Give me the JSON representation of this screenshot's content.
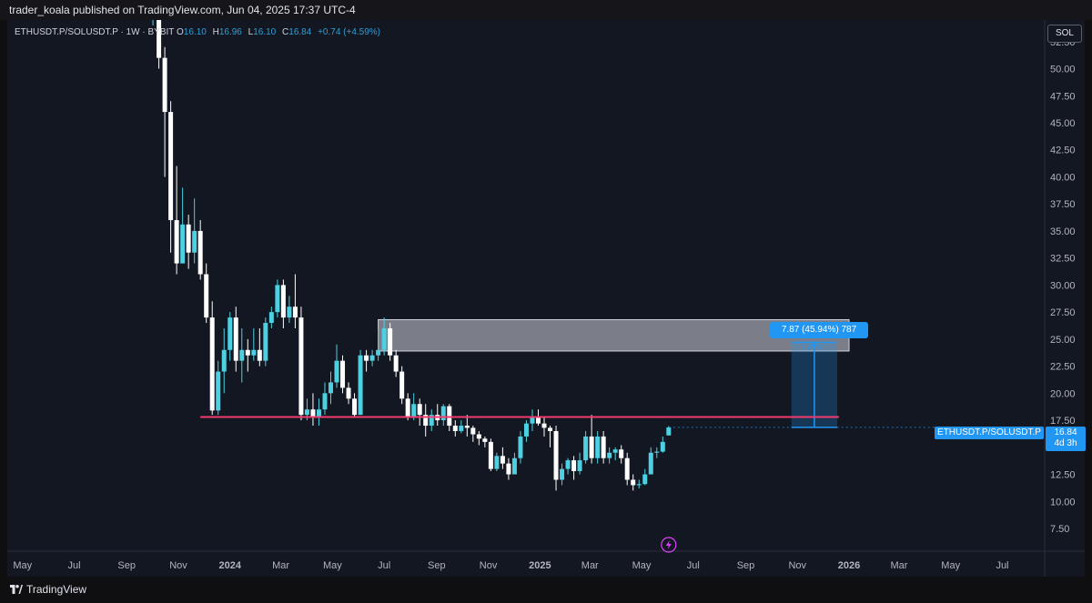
{
  "header": {
    "publisher": "trader_koala published on TradingView.com, Jun 04, 2025 17:37 UTC-4"
  },
  "legend": {
    "symbol": "ETHUSDT.P/SOLUSDT.P · 1W · BYBIT",
    "o_label": "O",
    "o_value": "16.10",
    "h_label": "H",
    "h_value": "16.96",
    "l_label": "L",
    "l_value": "16.10",
    "c_label": "C",
    "c_value": "16.84",
    "change": "+0.74 (+4.59%)"
  },
  "scale_button": "SOL",
  "price_tag": {
    "price": "16.84",
    "countdown": "4d 3h"
  },
  "symbol_tag": "ETHUSDT.P/SOLUSDT.P",
  "measure_label": "7.87 (45.94%) 787",
  "footer": {
    "brand": "TradingView"
  },
  "colors": {
    "up": "#4dd0e1",
    "down": "#ffffff",
    "support_line": "#f23b6e",
    "measure": "#2196f3",
    "zone": "#d1d4dc"
  },
  "chart_data": {
    "type": "candlestick",
    "symbol": "ETHUSDT.P/SOLUSDT.P",
    "interval": "1W",
    "y_ticks": [
      7.5,
      10,
      12.5,
      15,
      17.5,
      20,
      22.5,
      25,
      27.5,
      30,
      32.5,
      35,
      37.5,
      40,
      42.5,
      45,
      47.5,
      50,
      52.5
    ],
    "y_tick_labels": [
      "7.50",
      "10.00",
      "12.50",
      "15.00",
      "17.50",
      "20.00",
      "22.50",
      "25.00",
      "27.50",
      "30.00",
      "32.50",
      "35.00",
      "37.50",
      "40.00",
      "42.50",
      "45.00",
      "47.50",
      "50.00",
      "52.50"
    ],
    "ylim": [
      5.4,
      54.5
    ],
    "x_ticks": [
      "May",
      "Jul",
      "Sep",
      "Nov",
      "2024",
      "Mar",
      "May",
      "Jul",
      "Sep",
      "Nov",
      "2025",
      "Mar",
      "May",
      "Jul",
      "Sep",
      "Nov",
      "2026",
      "Mar",
      "May",
      "Jul"
    ],
    "x_tick_dates": [
      "2023-05-01",
      "2023-07-01",
      "2023-09-01",
      "2023-11-01",
      "2024-01-01",
      "2024-03-01",
      "2024-05-01",
      "2024-07-01",
      "2024-09-01",
      "2024-11-01",
      "2025-01-01",
      "2025-03-01",
      "2025-05-01",
      "2025-07-01",
      "2025-09-01",
      "2025-11-01",
      "2026-01-01",
      "2026-03-01",
      "2026-05-01",
      "2026-07-01"
    ],
    "xlim": [
      "2023-04-13",
      "2026-08-20"
    ],
    "candles": [
      {
        "date": "2023-10-02",
        "o": 55.0,
        "h": 59.0,
        "c": 57.0,
        "l": 54.0
      },
      {
        "date": "2023-10-09",
        "o": 57.0,
        "h": 58.0,
        "c": 51.0,
        "l": 50.0
      },
      {
        "date": "2023-10-16",
        "o": 51.0,
        "h": 52.0,
        "c": 46.0,
        "l": 40.0
      },
      {
        "date": "2023-10-23",
        "o": 46.0,
        "h": 47.0,
        "c": 36.0,
        "l": 33.0
      },
      {
        "date": "2023-10-30",
        "o": 36.0,
        "h": 41.0,
        "c": 32.0,
        "l": 31.0
      },
      {
        "date": "2023-11-06",
        "o": 32.0,
        "h": 39.0,
        "c": 35.6,
        "l": 32.0
      },
      {
        "date": "2023-11-13",
        "o": 35.6,
        "h": 36.5,
        "c": 33.0,
        "l": 31.5
      },
      {
        "date": "2023-11-20",
        "o": 33.0,
        "h": 38.0,
        "c": 35.0,
        "l": 32.0
      },
      {
        "date": "2023-11-27",
        "o": 35.0,
        "h": 36.0,
        "c": 31.0,
        "l": 30.5
      },
      {
        "date": "2023-12-04",
        "o": 31.0,
        "h": 32.0,
        "c": 27.0,
        "l": 26.5
      },
      {
        "date": "2023-12-11",
        "o": 27.0,
        "h": 28.5,
        "c": 18.4,
        "l": 18.0
      },
      {
        "date": "2023-12-18",
        "o": 18.4,
        "h": 23.0,
        "c": 22.0,
        "l": 18.0
      },
      {
        "date": "2023-12-25",
        "o": 22.0,
        "h": 26.0,
        "c": 24.0,
        "l": 20.0
      },
      {
        "date": "2024-01-01",
        "o": 24.0,
        "h": 27.5,
        "c": 27.0,
        "l": 23.0
      },
      {
        "date": "2024-01-08",
        "o": 27.0,
        "h": 28.0,
        "c": 23.0,
        "l": 22.0
      },
      {
        "date": "2024-01-15",
        "o": 23.0,
        "h": 26.0,
        "c": 24.0,
        "l": 21.0
      },
      {
        "date": "2024-01-22",
        "o": 24.0,
        "h": 25.0,
        "c": 23.5,
        "l": 22.0
      },
      {
        "date": "2024-01-29",
        "o": 23.5,
        "h": 26.0,
        "c": 24.0,
        "l": 23.0
      },
      {
        "date": "2024-02-05",
        "o": 24.0,
        "h": 26.0,
        "c": 23.0,
        "l": 22.5
      },
      {
        "date": "2024-02-12",
        "o": 23.0,
        "h": 27.0,
        "c": 26.5,
        "l": 22.5
      },
      {
        "date": "2024-02-19",
        "o": 26.5,
        "h": 28.0,
        "c": 27.5,
        "l": 26.0
      },
      {
        "date": "2024-02-26",
        "o": 27.5,
        "h": 30.5,
        "c": 30.0,
        "l": 27.0
      },
      {
        "date": "2024-03-04",
        "o": 30.0,
        "h": 30.5,
        "c": 27.0,
        "l": 26.0
      },
      {
        "date": "2024-03-11",
        "o": 27.0,
        "h": 29.0,
        "c": 28.0,
        "l": 26.5
      },
      {
        "date": "2024-03-18",
        "o": 28.0,
        "h": 31.0,
        "c": 27.0,
        "l": 26.0
      },
      {
        "date": "2024-03-25",
        "o": 27.0,
        "h": 28.0,
        "c": 18.0,
        "l": 17.5
      },
      {
        "date": "2024-04-01",
        "o": 18.0,
        "h": 19.5,
        "c": 18.5,
        "l": 17.5
      },
      {
        "date": "2024-04-08",
        "o": 18.5,
        "h": 20.0,
        "c": 17.8,
        "l": 17.0
      },
      {
        "date": "2024-04-15",
        "o": 17.8,
        "h": 19.5,
        "c": 18.5,
        "l": 17.0
      },
      {
        "date": "2024-04-22",
        "o": 18.5,
        "h": 21.0,
        "c": 20.0,
        "l": 18.0
      },
      {
        "date": "2024-04-29",
        "o": 20.0,
        "h": 22.0,
        "c": 21.0,
        "l": 19.0
      },
      {
        "date": "2024-05-06",
        "o": 21.0,
        "h": 24.5,
        "c": 23.0,
        "l": 20.5
      },
      {
        "date": "2024-05-13",
        "o": 23.0,
        "h": 23.5,
        "c": 20.5,
        "l": 20.0
      },
      {
        "date": "2024-05-20",
        "o": 20.5,
        "h": 21.0,
        "c": 19.5,
        "l": 19.0
      },
      {
        "date": "2024-05-27",
        "o": 19.5,
        "h": 20.0,
        "c": 18.0,
        "l": 17.8
      },
      {
        "date": "2024-06-03",
        "o": 18.0,
        "h": 24.0,
        "c": 23.5,
        "l": 18.0
      },
      {
        "date": "2024-06-10",
        "o": 23.5,
        "h": 24.0,
        "c": 23.0,
        "l": 22.0
      },
      {
        "date": "2024-06-17",
        "o": 23.0,
        "h": 24.0,
        "c": 23.5,
        "l": 22.5
      },
      {
        "date": "2024-06-24",
        "o": 23.5,
        "h": 26.0,
        "c": 24.0,
        "l": 23.0
      },
      {
        "date": "2024-07-01",
        "o": 24.0,
        "h": 27.0,
        "c": 26.0,
        "l": 23.5
      },
      {
        "date": "2024-07-08",
        "o": 26.0,
        "h": 26.5,
        "c": 23.5,
        "l": 23.0
      },
      {
        "date": "2024-07-15",
        "o": 23.5,
        "h": 24.0,
        "c": 22.0,
        "l": 21.5
      },
      {
        "date": "2024-07-22",
        "o": 22.0,
        "h": 22.5,
        "c": 19.5,
        "l": 19.0
      },
      {
        "date": "2024-07-29",
        "o": 19.5,
        "h": 20.0,
        "c": 17.8,
        "l": 17.5
      },
      {
        "date": "2024-08-05",
        "o": 17.8,
        "h": 20.0,
        "c": 19.0,
        "l": 17.5
      },
      {
        "date": "2024-08-12",
        "o": 19.0,
        "h": 19.5,
        "c": 18.0,
        "l": 17.0
      },
      {
        "date": "2024-08-19",
        "o": 18.0,
        "h": 19.0,
        "c": 17.0,
        "l": 16.0
      },
      {
        "date": "2024-08-26",
        "o": 17.0,
        "h": 18.5,
        "c": 18.0,
        "l": 16.5
      },
      {
        "date": "2024-09-02",
        "o": 18.0,
        "h": 19.0,
        "c": 17.5,
        "l": 17.0
      },
      {
        "date": "2024-09-09",
        "o": 17.5,
        "h": 19.0,
        "c": 18.8,
        "l": 17.0
      },
      {
        "date": "2024-09-16",
        "o": 18.8,
        "h": 19.0,
        "c": 17.0,
        "l": 16.5
      },
      {
        "date": "2024-09-23",
        "o": 17.0,
        "h": 17.5,
        "c": 16.5,
        "l": 16.0
      },
      {
        "date": "2024-09-30",
        "o": 16.5,
        "h": 17.5,
        "c": 17.0,
        "l": 16.3
      },
      {
        "date": "2024-10-07",
        "o": 17.0,
        "h": 18.0,
        "c": 16.8,
        "l": 16.0
      },
      {
        "date": "2024-10-14",
        "o": 16.8,
        "h": 17.0,
        "c": 16.2,
        "l": 15.5
      },
      {
        "date": "2024-10-21",
        "o": 16.2,
        "h": 16.5,
        "c": 15.8,
        "l": 15.2
      },
      {
        "date": "2024-10-28",
        "o": 15.8,
        "h": 16.0,
        "c": 15.5,
        "l": 15.0
      },
      {
        "date": "2024-11-04",
        "o": 15.5,
        "h": 15.8,
        "c": 13.0,
        "l": 12.8
      },
      {
        "date": "2024-11-11",
        "o": 13.0,
        "h": 14.5,
        "c": 14.2,
        "l": 12.8
      },
      {
        "date": "2024-11-18",
        "o": 14.2,
        "h": 15.0,
        "c": 13.5,
        "l": 13.0
      },
      {
        "date": "2024-11-25",
        "o": 13.5,
        "h": 14.0,
        "c": 12.5,
        "l": 12.0
      },
      {
        "date": "2024-12-02",
        "o": 12.5,
        "h": 14.5,
        "c": 14.0,
        "l": 12.5
      },
      {
        "date": "2024-12-09",
        "o": 14.0,
        "h": 16.5,
        "c": 16.0,
        "l": 13.5
      },
      {
        "date": "2024-12-16",
        "o": 16.0,
        "h": 17.5,
        "c": 17.2,
        "l": 15.5
      },
      {
        "date": "2024-12-23",
        "o": 17.2,
        "h": 18.5,
        "c": 17.8,
        "l": 16.5
      },
      {
        "date": "2024-12-30",
        "o": 17.8,
        "h": 18.5,
        "c": 17.2,
        "l": 17.0
      },
      {
        "date": "2025-01-06",
        "o": 17.2,
        "h": 17.8,
        "c": 16.8,
        "l": 16.0
      },
      {
        "date": "2025-01-13",
        "o": 16.8,
        "h": 17.0,
        "c": 16.5,
        "l": 15.0
      },
      {
        "date": "2025-01-20",
        "o": 16.5,
        "h": 17.0,
        "c": 12.0,
        "l": 11.0
      },
      {
        "date": "2025-01-27",
        "o": 12.0,
        "h": 13.5,
        "c": 13.0,
        "l": 11.5
      },
      {
        "date": "2025-02-03",
        "o": 13.0,
        "h": 14.0,
        "c": 13.8,
        "l": 12.5
      },
      {
        "date": "2025-02-10",
        "o": 13.8,
        "h": 14.2,
        "c": 12.8,
        "l": 12.0
      },
      {
        "date": "2025-02-17",
        "o": 12.8,
        "h": 14.5,
        "c": 13.8,
        "l": 12.5
      },
      {
        "date": "2025-02-24",
        "o": 13.8,
        "h": 16.5,
        "c": 16.0,
        "l": 13.5
      },
      {
        "date": "2025-03-03",
        "o": 16.0,
        "h": 18.0,
        "c": 14.0,
        "l": 13.5
      },
      {
        "date": "2025-03-10",
        "o": 14.0,
        "h": 16.5,
        "c": 16.0,
        "l": 13.5
      },
      {
        "date": "2025-03-17",
        "o": 16.0,
        "h": 16.5,
        "c": 14.0,
        "l": 13.5
      },
      {
        "date": "2025-03-24",
        "o": 14.0,
        "h": 15.0,
        "c": 14.5,
        "l": 13.5
      },
      {
        "date": "2025-03-31",
        "o": 14.5,
        "h": 15.0,
        "c": 14.8,
        "l": 13.8
      },
      {
        "date": "2025-04-07",
        "o": 14.8,
        "h": 15.2,
        "c": 14.0,
        "l": 13.5
      },
      {
        "date": "2025-04-14",
        "o": 14.0,
        "h": 14.5,
        "c": 12.0,
        "l": 11.5
      },
      {
        "date": "2025-04-21",
        "o": 12.0,
        "h": 12.5,
        "c": 11.5,
        "l": 11.0
      },
      {
        "date": "2025-04-28",
        "o": 11.5,
        "h": 12.0,
        "c": 11.6,
        "l": 11.2
      },
      {
        "date": "2025-05-05",
        "o": 11.6,
        "h": 13.0,
        "c": 12.5,
        "l": 11.5
      },
      {
        "date": "2025-05-12",
        "o": 12.5,
        "h": 15.0,
        "c": 14.5,
        "l": 12.5
      },
      {
        "date": "2025-05-19",
        "o": 14.5,
        "h": 15.0,
        "c": 14.6,
        "l": 14.0
      },
      {
        "date": "2025-05-26",
        "o": 14.6,
        "h": 16.0,
        "c": 15.5,
        "l": 14.5
      },
      {
        "date": "2025-06-02",
        "o": 16.1,
        "h": 16.96,
        "c": 16.84,
        "l": 16.1
      }
    ],
    "support_level": 17.8,
    "resistance_zone": {
      "from": 23.9,
      "to": 26.8,
      "start_date": "2024-06-24",
      "end_date": "2026-01-01"
    },
    "projection": {
      "start_date": "2025-10-25",
      "end_date": "2025-12-18",
      "from": 16.84,
      "to": 24.71,
      "label": "7.87 (45.94%) 787"
    },
    "last_price": 16.84
  }
}
